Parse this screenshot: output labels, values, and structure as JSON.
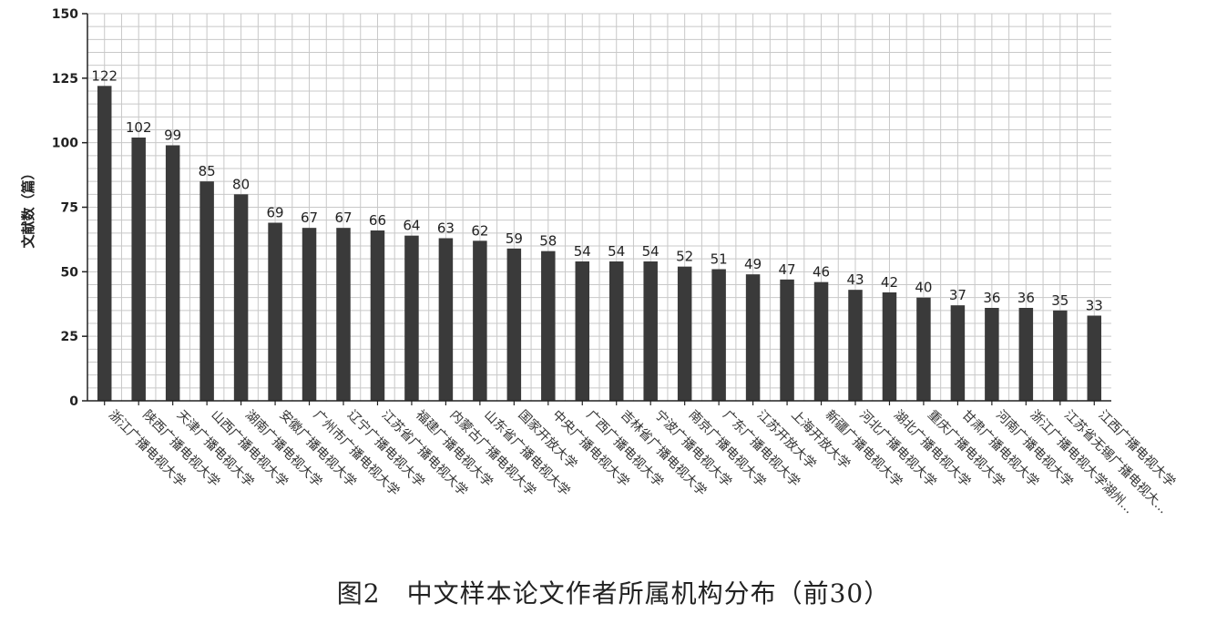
{
  "chart_data": {
    "type": "bar",
    "title": "",
    "xlabel": "",
    "ylabel": "文献数（篇）",
    "ylim": [
      0,
      150
    ],
    "yticks": [
      0,
      25,
      50,
      75,
      100,
      125,
      150
    ],
    "grid": true,
    "categories": [
      "浙江广播电视大学",
      "陕西广播电视大学",
      "天津广播电视大学",
      "山西广播电视大学",
      "湖南广播电视大学",
      "安徽广播电视大学",
      "广州市广播电视大学",
      "辽宁广播电视大学",
      "江苏省广播电视大学",
      "福建广播电视大学",
      "内蒙古广播电视大学",
      "山东省广播电视大学",
      "国家开放大学",
      "中央广播电视大学",
      "广西广播电视大学",
      "吉林省广播电视大学",
      "宁波广播电视大学",
      "南京广播电视大学",
      "广东广播电视大学",
      "江苏开放大学",
      "上海开放大学",
      "新疆广播电视大学",
      "河北广播电视大学",
      "湖北广播电视大学",
      "重庆广播电视大学",
      "甘肃广播电视大学",
      "河南广播电视大学",
      "浙江广播电视大学湖州...",
      "江苏省无锡广播电视大...",
      "江西广播电视大学"
    ],
    "values": [
      122,
      102,
      99,
      85,
      80,
      69,
      67,
      67,
      66,
      64,
      63,
      62,
      59,
      58,
      54,
      54,
      54,
      52,
      51,
      49,
      47,
      46,
      43,
      42,
      40,
      37,
      36,
      36,
      35,
      33
    ],
    "bar_color": "#3a3a3a",
    "grid_color": "#c8c8c8",
    "axis_color": "#222222"
  },
  "caption": "图2　中文样本论文作者所属机构分布（前30）"
}
